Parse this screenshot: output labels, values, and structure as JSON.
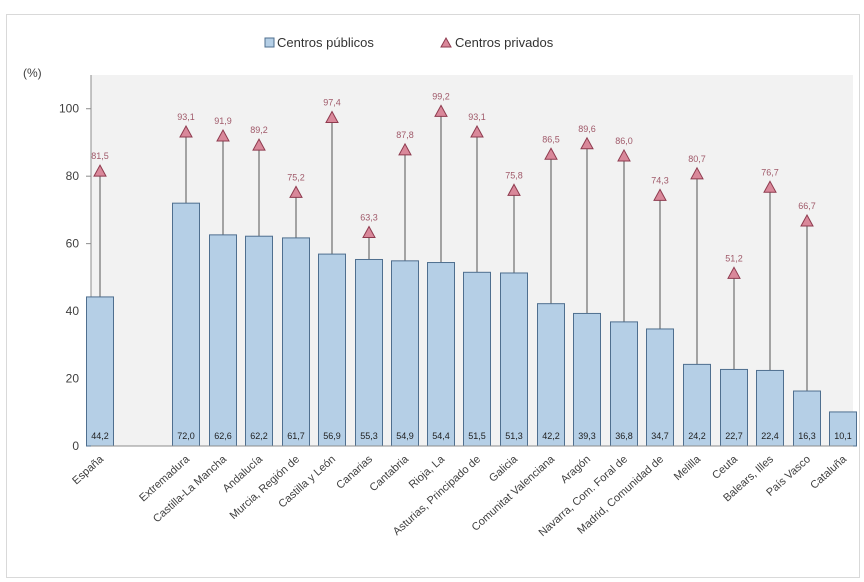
{
  "chart_data": {
    "type": "bar",
    "unit_label": "(%)",
    "ylim": [
      0,
      110
    ],
    "yticks": [
      "0",
      "20",
      "40",
      "60",
      "80",
      "100"
    ],
    "grid": false,
    "legend_placement": "top-center",
    "colors": {
      "bar_fill": "#b5cfe6",
      "bar_stroke": "#4f6f8f",
      "marker_fill": "#d9889a",
      "marker_stroke": "#8e3a4e",
      "stem": "#6f6f6f",
      "plot_bg": "#f2f2f2"
    },
    "categories": [
      "España",
      "Extremadura",
      "Castilla-La Mancha",
      "Andalucía",
      "Murcia, Región de",
      "Castilla y León",
      "Canarias",
      "Cantabria",
      "Rioja, La",
      "Asturias, Principado de",
      "Galicia",
      "Comunitat Valenciana",
      "Aragón",
      "Navarra, Com. Foral de",
      "Madrid, Comunidad de",
      "Melilla",
      "Ceuta",
      "Balears, Illes",
      "País Vasco",
      "Cataluña"
    ],
    "series": [
      {
        "name": "Centros públicos",
        "marker": "square",
        "values": [
          44.2,
          72.0,
          62.6,
          62.2,
          61.7,
          56.9,
          55.3,
          54.9,
          54.4,
          51.5,
          51.3,
          42.2,
          39.3,
          36.8,
          34.7,
          24.2,
          22.7,
          22.4,
          16.3,
          10.1
        ],
        "labels": [
          "44,2",
          "72,0",
          "62,6",
          "62,2",
          "61,7",
          "56,9",
          "55,3",
          "54,9",
          "54,4",
          "51,5",
          "51,3",
          "42,2",
          "39,3",
          "36,8",
          "34,7",
          "24,2",
          "22,7",
          "22,4",
          "16,3",
          "10,1"
        ]
      },
      {
        "name": "Centros privados",
        "marker": "triangle",
        "values": [
          81.5,
          93.1,
          91.9,
          89.2,
          75.2,
          97.4,
          63.3,
          87.8,
          99.2,
          93.1,
          75.8,
          86.5,
          89.6,
          86.0,
          74.3,
          80.7,
          51.2,
          76.7,
          66.7,
          null
        ],
        "labels": [
          "81,5",
          "93,1",
          "91,9",
          "89,2",
          "75,2",
          "97,4",
          "63,3",
          "87,8",
          "99,2",
          "93,1",
          "75,8",
          "86,5",
          "89,6",
          "86,0",
          "74,3",
          "80,7",
          "51,2",
          "76,7",
          "66,7",
          ""
        ]
      }
    ]
  }
}
